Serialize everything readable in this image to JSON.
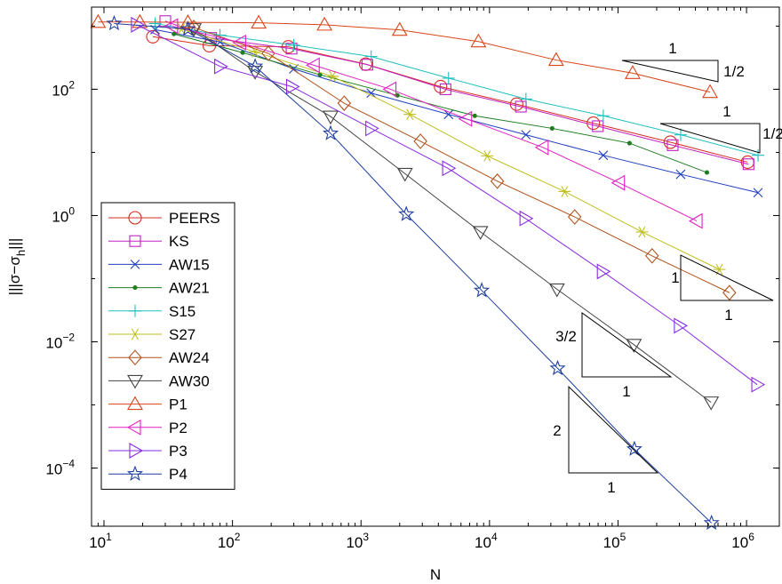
{
  "chart_data": {
    "type": "line",
    "xscale": "log",
    "yscale": "log",
    "xlim": [
      8,
      1800000
    ],
    "ylim": [
      1.2e-05,
      2000
    ],
    "xlabel": "N",
    "ylabel": "|||σ−σ_h|||",
    "ylabel_main": "|||σ−σ",
    "ylabel_sub": "h",
    "ylabel_end": "|||",
    "xticks": [
      10,
      100,
      1000,
      10000,
      100000,
      1000000
    ],
    "xtick_exps": [
      "1",
      "2",
      "3",
      "4",
      "5",
      "6"
    ],
    "yticks": [
      0.0001,
      0.01,
      1,
      100
    ],
    "ytick_exps": [
      "−4",
      "−2",
      "0",
      "2"
    ],
    "tick_base": "10",
    "grid": false,
    "legend_position": "bottom-left",
    "series": [
      {
        "name": "PEERS",
        "color": "#d62d20",
        "marker": "circle",
        "x": [
          24,
          66,
          272,
          1088,
          4160,
          16256,
          64256,
          255488,
          1018880
        ],
        "y": [
          680,
          490,
          470,
          250,
          110,
          58,
          29,
          14.5,
          7
        ]
      },
      {
        "name": "KS",
        "color": "#c020c0",
        "marker": "square",
        "x": [
          30,
          68,
          288,
          1120,
          4544,
          17536,
          69632,
          266240,
          1036288
        ],
        "y": [
          1200,
          650,
          440,
          245,
          100,
          53,
          26,
          13,
          6.5
        ]
      },
      {
        "name": "AW15",
        "color": "#1f3fbf",
        "marker": "x",
        "x": [
          25,
          80,
          300,
          1200,
          4800,
          19200,
          76800,
          307200,
          1228800
        ],
        "y": [
          880,
          560,
          210,
          87,
          40,
          19,
          9,
          4.5,
          2.3
        ]
      },
      {
        "name": "AW21",
        "color": "#1e7d1e",
        "marker": "dot",
        "x": [
          35,
          120,
          480,
          1920,
          7680,
          30720,
          122880,
          491520
        ],
        "y": [
          750,
          380,
          170,
          80,
          38,
          24,
          14,
          4.8
        ]
      },
      {
        "name": "S15",
        "color": "#1fbfbf",
        "marker": "plus",
        "x": [
          25,
          80,
          300,
          1200,
          4800,
          19200,
          76800,
          307200,
          1228800
        ],
        "y": [
          1100,
          720,
          500,
          330,
          150,
          70,
          38,
          19,
          9
        ]
      },
      {
        "name": "S27",
        "color": "#bfbf1f",
        "marker": "star6",
        "x": [
          40,
          150,
          600,
          2400,
          9600,
          38400,
          153600,
          614400
        ],
        "y": [
          900,
          390,
          160,
          40,
          8.8,
          2.4,
          0.55,
          0.14
        ]
      },
      {
        "name": "AW24",
        "color": "#b0501a",
        "marker": "diamond",
        "x": [
          50,
          190,
          740,
          2900,
          11500,
          46000,
          184000,
          736000
        ],
        "y": [
          950,
          370,
          60,
          15,
          3.5,
          0.95,
          0.23,
          0.06
        ]
      },
      {
        "name": "AW30",
        "color": "#444444",
        "marker": "tri-down",
        "x": [
          50,
          150,
          580,
          2200,
          8500,
          33500,
          133000,
          530000
        ],
        "y": [
          900,
          190,
          37,
          4.6,
          0.55,
          0.068,
          0.009,
          0.0011
        ]
      },
      {
        "name": "P1",
        "color": "#d9441a",
        "marker": "tri-up",
        "x": [
          9,
          19,
          45,
          160,
          520,
          2000,
          8200,
          33000,
          130000,
          520000
        ],
        "y": [
          1160,
          1160,
          1150,
          1130,
          1050,
          870,
          570,
          290,
          180,
          90
        ]
      },
      {
        "name": "P2",
        "color": "#e020c0",
        "marker": "tri-left",
        "x": [
          34,
          115,
          430,
          1700,
          6600,
          26000,
          102000,
          410000
        ],
        "y": [
          1000,
          550,
          240,
          100,
          34,
          12,
          3.3,
          0.82
        ]
      },
      {
        "name": "P3",
        "color": "#8a2be2",
        "marker": "tri-right",
        "x": [
          18,
          80,
          290,
          1200,
          4750,
          19000,
          76000,
          302000,
          1210000
        ],
        "y": [
          1050,
          230,
          110,
          24,
          5.6,
          0.9,
          0.13,
          0.018,
          0.0021
        ]
      },
      {
        "name": "P4",
        "color": "#1f3f9f",
        "marker": "pentagram",
        "x": [
          12,
          45,
          150,
          580,
          2250,
          8700,
          33900,
          134000,
          534000
        ],
        "y": [
          1100,
          900,
          230,
          20,
          1.05,
          0.065,
          0.0038,
          0.0002,
          1.35e-05
        ]
      }
    ],
    "annotations": [
      {
        "run_label": "1",
        "rise_label": "1/2"
      },
      {
        "run_label": "1",
        "rise_label": "1/2"
      },
      {
        "run_label": "1",
        "rise_label": "1"
      },
      {
        "run_label": "1",
        "rise_label": "3/2"
      },
      {
        "run_label": "1",
        "rise_label": "2"
      }
    ]
  }
}
